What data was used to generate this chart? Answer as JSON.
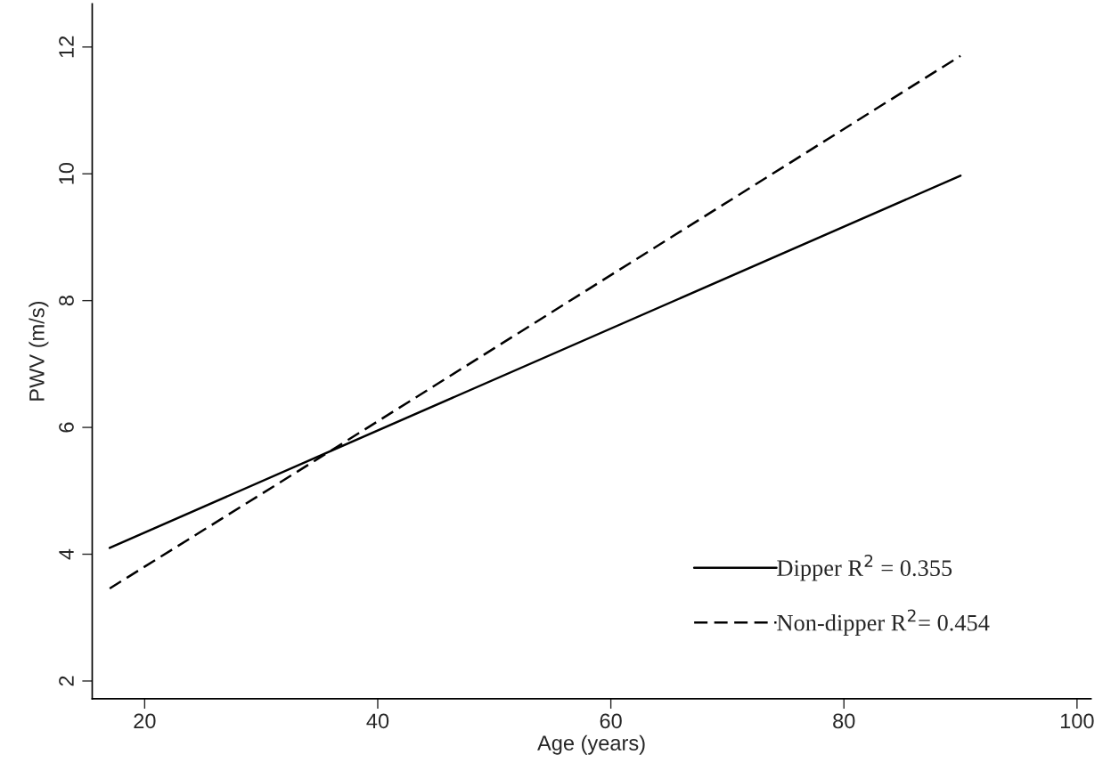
{
  "chart_data": {
    "type": "line",
    "xlabel": "Age (years)",
    "ylabel": "PWV (m/s)",
    "xlim": [
      15.5,
      101.2
    ],
    "ylim": [
      1.72,
      12.68
    ],
    "xticks": [
      20,
      40,
      60,
      80,
      100
    ],
    "yticks": [
      2,
      4,
      6,
      8,
      10,
      12
    ],
    "grid": false,
    "legend": "bottom right",
    "series": [
      {
        "name": "Dipper R$^{2}$ = 0.355",
        "color": "#000000",
        "line_style": "solid",
        "x": [
          17,
          35,
          90
        ],
        "values": [
          4.1,
          5.55,
          9.97
        ]
      },
      {
        "name": "Non-dipper R$^{2}$= 0.454",
        "color": "#000000",
        "line_style": "dashed",
        "x": [
          17,
          35,
          90
        ],
        "values": [
          3.46,
          5.52,
          11.86
        ]
      }
    ]
  }
}
